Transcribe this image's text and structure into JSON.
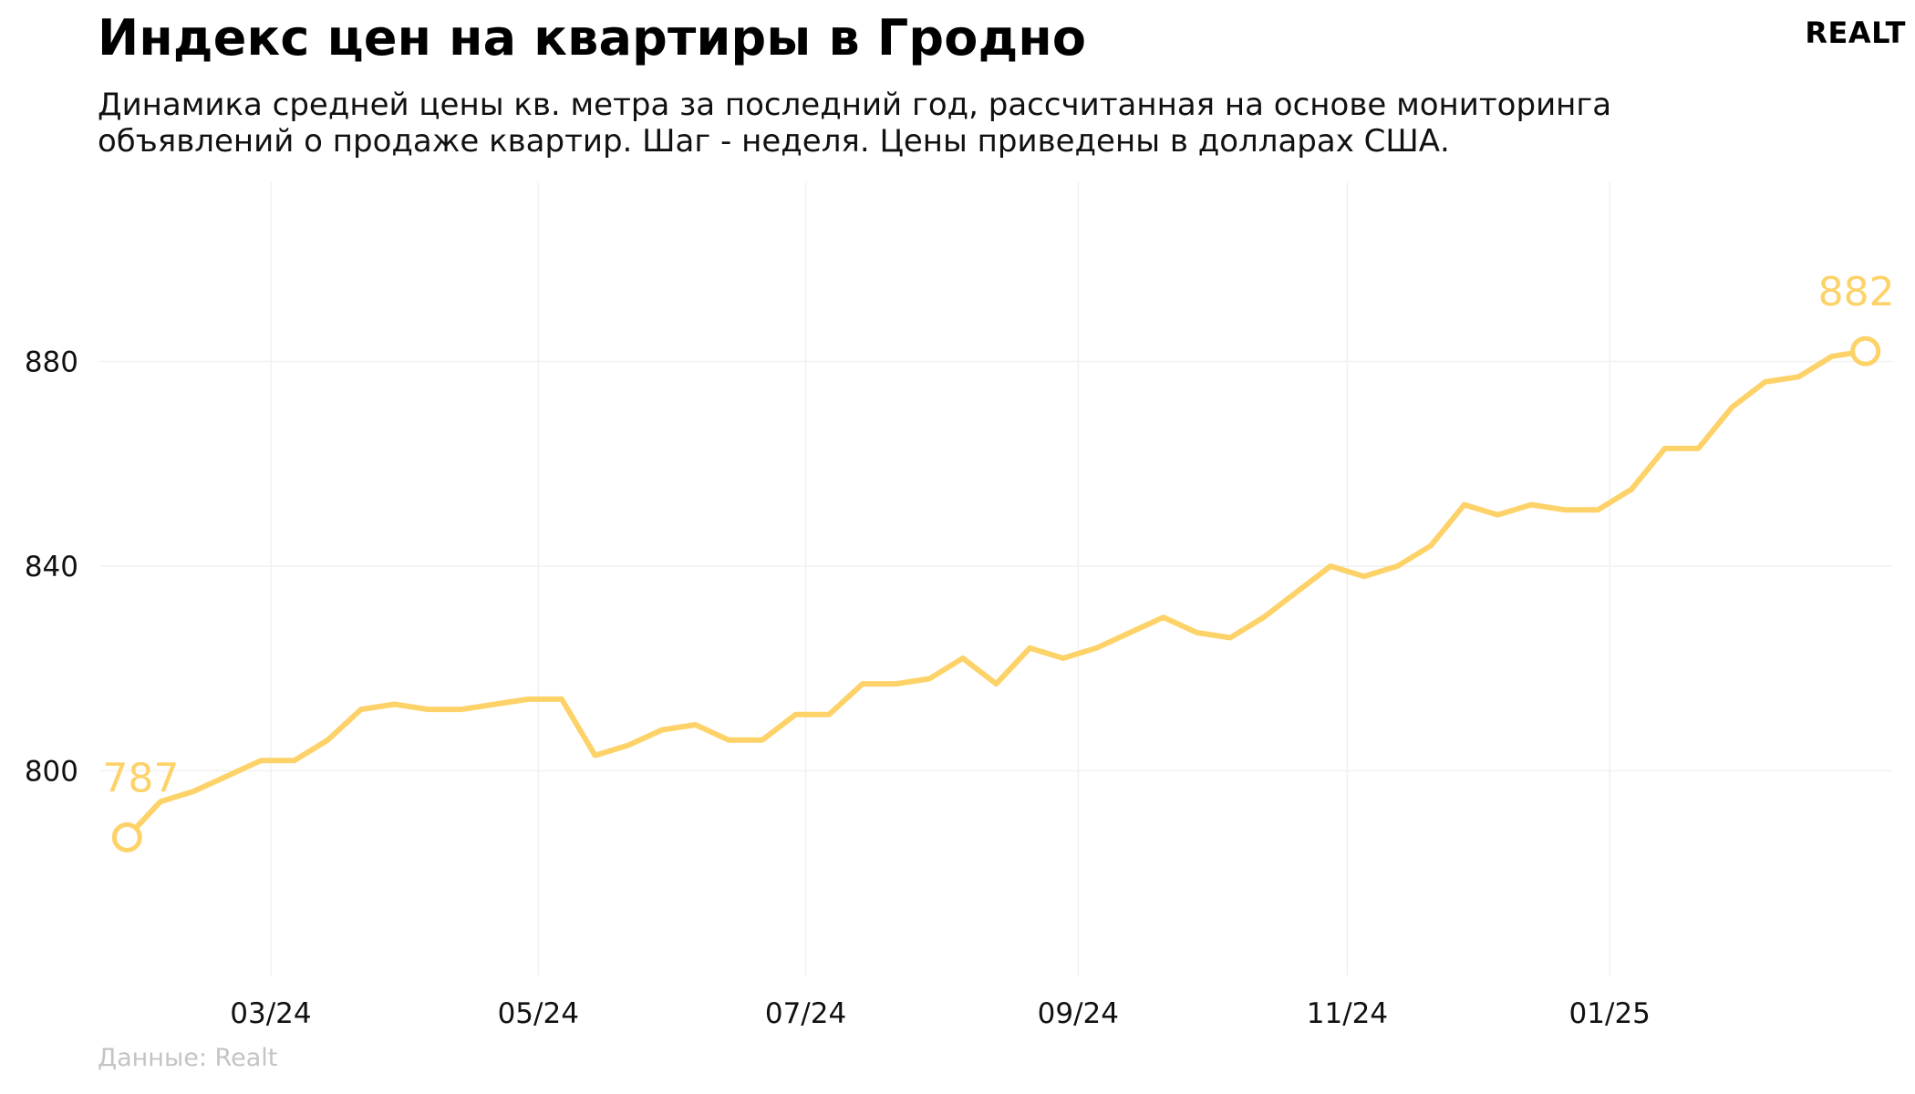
{
  "header": {
    "title": "Индекс цен на квартиры в Гродно",
    "subtitle": "Динамика средней цены кв. метра за последний год, рассчитанная на основе мониторинга объявлений о продаже квартир. Шаг - неделя. Цены приведены в долларах США.",
    "logo": "REALT"
  },
  "footer": {
    "source": "Данные: Realt"
  },
  "colors": {
    "line": "#fdd268",
    "grid": "#f1f1f1",
    "text": "#111111",
    "source": "#c4c4c4"
  },
  "chart_data": {
    "type": "line",
    "title": "Индекс цен на квартиры в Гродно",
    "xlabel": "",
    "ylabel": "",
    "ylim": [
      760,
      915
    ],
    "y_ticks": [
      800,
      840,
      880
    ],
    "x_tick_labels": [
      "03/24",
      "05/24",
      "07/24",
      "09/24",
      "11/24",
      "01/25"
    ],
    "x_tick_weeks": [
      4.3,
      12.3,
      20.3,
      28.45,
      36.5,
      44.35
    ],
    "x_range": [
      -0.8,
      52.8
    ],
    "grid": true,
    "legend": "none",
    "series": [
      {
        "values": [
          787,
          794,
          796,
          799,
          802,
          802,
          806,
          812,
          813,
          812,
          812,
          813,
          814,
          814,
          803,
          805,
          808,
          809,
          806,
          806,
          811,
          811,
          817,
          817,
          818,
          822,
          817,
          824,
          822,
          824,
          827,
          830,
          827,
          826,
          830,
          835,
          840,
          838,
          840,
          844,
          852,
          850,
          852,
          851,
          851,
          855,
          863,
          863,
          871,
          876,
          877,
          881,
          882
        ]
      }
    ],
    "annotations": [
      {
        "point_index": 0,
        "text": "787"
      },
      {
        "point_index": 52,
        "text": "882"
      }
    ]
  }
}
